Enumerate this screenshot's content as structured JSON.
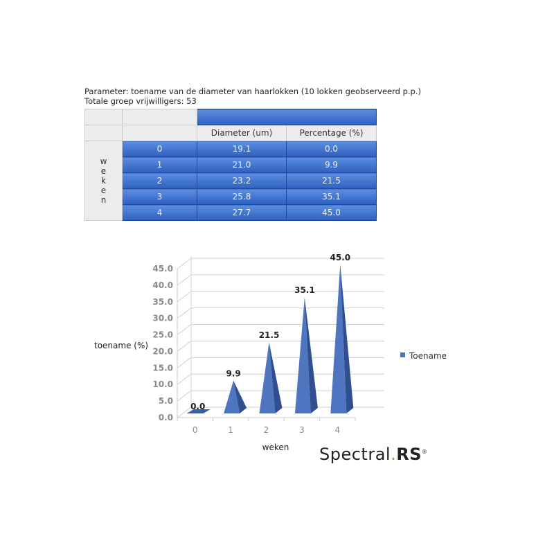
{
  "caption": {
    "line1": "Parameter: toename van de diameter van haarlokken (10 lokken geobserveerd p.p.)",
    "line2": "Totale groep vrijwilligers: 53"
  },
  "table": {
    "row_group_label": "weken",
    "columns": [
      "Diameter (um)",
      "Percentage (%)"
    ],
    "rows": [
      {
        "week": "0",
        "diameter": "19.1",
        "percentage": "0.0"
      },
      {
        "week": "1",
        "diameter": "21.0",
        "percentage": "9.9"
      },
      {
        "week": "2",
        "diameter": "23.2",
        "percentage": "21.5"
      },
      {
        "week": "3",
        "diameter": "25.8",
        "percentage": "35.1"
      },
      {
        "week": "4",
        "diameter": "27.7",
        "percentage": "45.0"
      }
    ]
  },
  "chart_data": {
    "type": "bar",
    "style": "3d-pyramid",
    "categories": [
      "0",
      "1",
      "2",
      "3",
      "4"
    ],
    "series": [
      {
        "name": "Toename",
        "values": [
          0.0,
          9.9,
          21.5,
          35.1,
          45.0
        ],
        "color": "#4f74c0"
      }
    ],
    "data_labels": [
      "0.0",
      "9.9",
      "21.5",
      "35.1",
      "45.0"
    ],
    "xlabel": "weken",
    "ylabel": "toename (%)",
    "ylim": [
      0,
      45
    ],
    "yticks": [
      "0.0",
      "5.0",
      "10.0",
      "15.0",
      "20.0",
      "25.0",
      "30.0",
      "35.0",
      "40.0",
      "45.0"
    ],
    "grid": true,
    "legend": "right"
  },
  "logo": {
    "text": "Spectral",
    "dot": ".",
    "bold": "RS",
    "mark": "®"
  }
}
